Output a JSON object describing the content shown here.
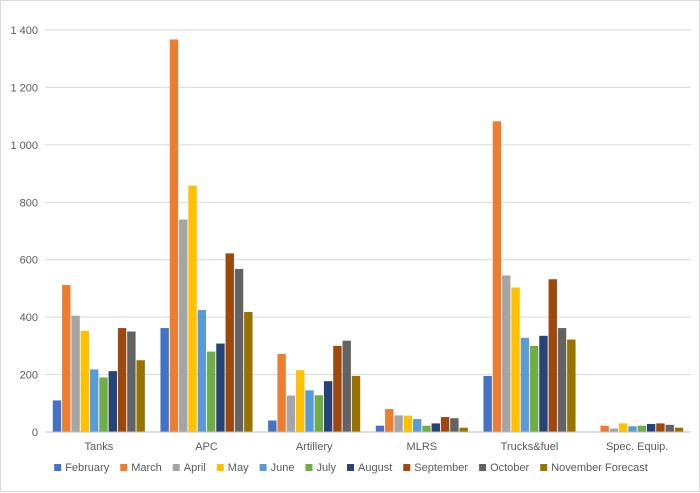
{
  "chart_data": {
    "type": "bar",
    "title": "",
    "xlabel": "",
    "ylabel": "",
    "ylim": [
      0,
      1400
    ],
    "yticks": [
      0,
      200,
      400,
      600,
      800,
      1000,
      1200,
      1400
    ],
    "ytick_labels": [
      "0",
      "200",
      "400",
      "600",
      "800",
      "1 000",
      "1 200",
      "1 400"
    ],
    "grid": "horizontal",
    "legend_position": "bottom",
    "categories": [
      "Tanks",
      "APC",
      "Artillery",
      "MLRS",
      "Trucks&fuel",
      "Spec. Equip."
    ],
    "series": [
      {
        "name": "February",
        "color": "#4472C4",
        "values": [
          110,
          362,
          40,
          22,
          195,
          0
        ]
      },
      {
        "name": "March",
        "color": "#ED7D31",
        "values": [
          512,
          1367,
          272,
          80,
          1082,
          22
        ]
      },
      {
        "name": "April",
        "color": "#A5A5A5",
        "values": [
          405,
          740,
          127,
          58,
          545,
          12
        ]
      },
      {
        "name": "May",
        "color": "#FFC000",
        "values": [
          352,
          858,
          215,
          57,
          503,
          30
        ]
      },
      {
        "name": "June",
        "color": "#5B9BD5",
        "values": [
          218,
          425,
          145,
          45,
          328,
          20
        ]
      },
      {
        "name": "July",
        "color": "#70AD47",
        "values": [
          190,
          280,
          128,
          22,
          300,
          22
        ]
      },
      {
        "name": "August",
        "color": "#264478",
        "values": [
          212,
          308,
          177,
          30,
          335,
          28
        ]
      },
      {
        "name": "September",
        "color": "#9E480E",
        "values": [
          362,
          622,
          300,
          52,
          532,
          30
        ]
      },
      {
        "name": "October",
        "color": "#636363",
        "values": [
          350,
          568,
          318,
          48,
          362,
          25
        ]
      },
      {
        "name": "November Forecast",
        "color": "#997300",
        "values": [
          250,
          418,
          195,
          15,
          322,
          15
        ]
      }
    ]
  }
}
